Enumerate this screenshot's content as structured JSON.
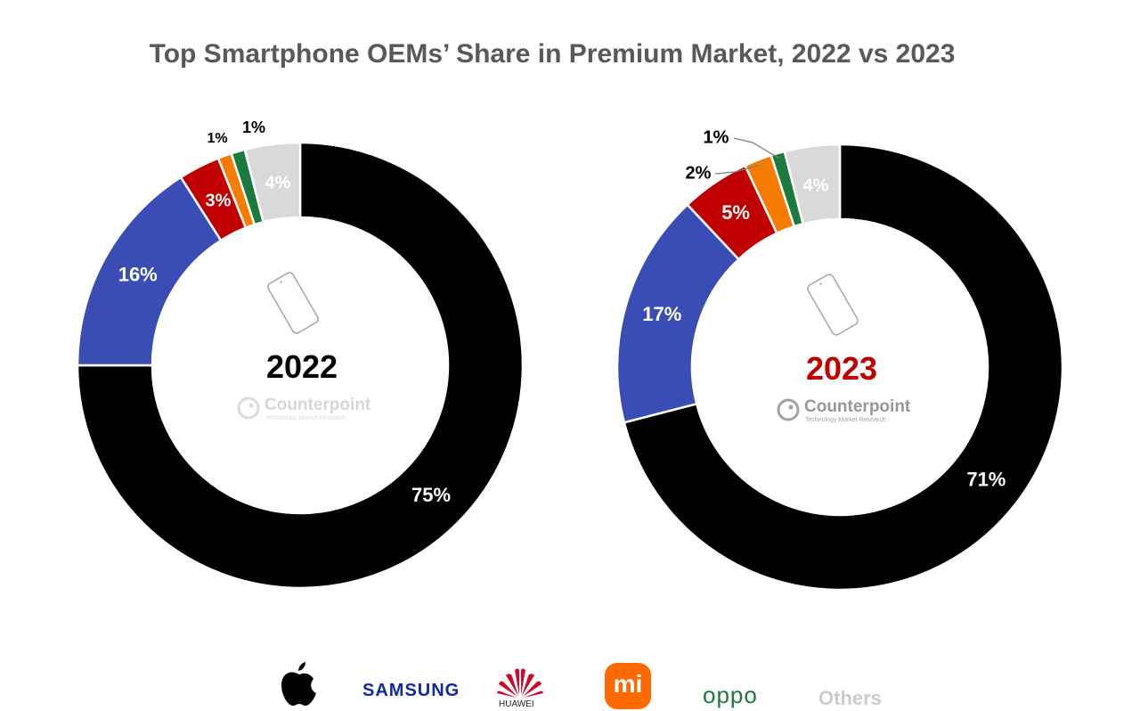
{
  "chart_data": [
    {
      "type": "pie",
      "year": "2022",
      "series": [
        {
          "name": "Apple",
          "value": 75,
          "label": "75%",
          "color": "#000000"
        },
        {
          "name": "Samsung",
          "value": 16,
          "label": "16%",
          "color": "#3A4DB5"
        },
        {
          "name": "Huawei",
          "value": 3,
          "label": "3%",
          "color": "#C00000"
        },
        {
          "name": "Xiaomi",
          "value": 1,
          "label": "1%",
          "color": "#F57C00"
        },
        {
          "name": "OPPO",
          "value": 1,
          "label": "1%",
          "color": "#1B7A3E"
        },
        {
          "name": "Others",
          "value": 4,
          "label": "4%",
          "color": "#D9D9D9"
        }
      ],
      "center_label_color": "#000000"
    },
    {
      "type": "pie",
      "year": "2023",
      "series": [
        {
          "name": "Apple",
          "value": 71,
          "label": "71%",
          "color": "#000000"
        },
        {
          "name": "Samsung",
          "value": 17,
          "label": "17%",
          "color": "#3A4DB5"
        },
        {
          "name": "Huawei",
          "value": 5,
          "label": "5%",
          "color": "#C00000"
        },
        {
          "name": "Xiaomi",
          "value": 2,
          "label": "2%",
          "color": "#F57C00"
        },
        {
          "name": "OPPO",
          "value": 1,
          "label": "1%",
          "color": "#1B7A3E"
        },
        {
          "name": "Others",
          "value": 4,
          "label": "4%",
          "color": "#D9D9D9"
        }
      ],
      "center_label_color": "#C00000"
    }
  ],
  "title": "Top Smartphone OEMs’ Share in Premium Market, 2022 vs 2023",
  "watermark": {
    "name": "Counterpoint",
    "sub": "Technology Market Research"
  },
  "legend": [
    {
      "name": "Apple",
      "icon": "apple-logo-icon",
      "color": "#000000"
    },
    {
      "name": "SAMSUNG",
      "icon": "samsung-wordmark",
      "color": "#1428A0"
    },
    {
      "name": "HUAWEI",
      "icon": "huawei-logo-icon",
      "color": "#CF0A2C"
    },
    {
      "name": "mi",
      "icon": "xiaomi-logo-icon",
      "color": "#FF6900"
    },
    {
      "name": "oppo",
      "icon": "oppo-wordmark",
      "color": "#1B7A3E"
    },
    {
      "name": "Others",
      "icon": "others-label",
      "color": "#CCCCCC"
    }
  ]
}
